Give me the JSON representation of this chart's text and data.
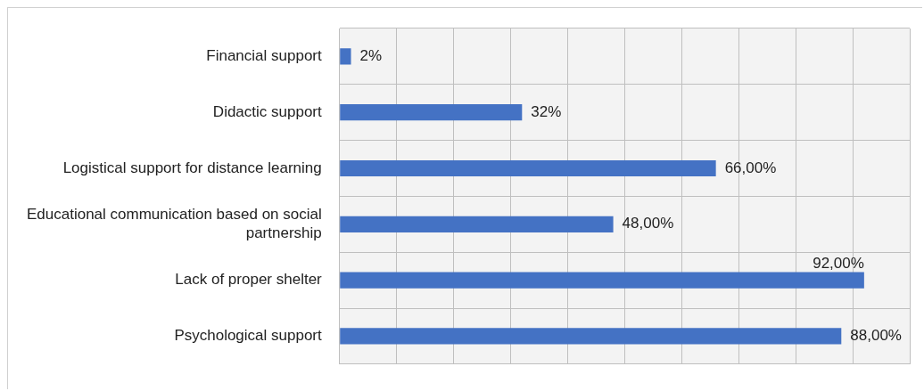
{
  "chart_data": {
    "type": "bar",
    "orientation": "horizontal",
    "categories": [
      "Financial support",
      "Didactic support",
      "Logistical support for distance learning",
      "Educational communication based on social partnership",
      "Lack of proper shelter",
      "Psychological support"
    ],
    "values": [
      2,
      32,
      66,
      48,
      92,
      88
    ],
    "value_labels": [
      "2%",
      "32%",
      "66,00%",
      "48,00%",
      "92,00%",
      "88,00%"
    ],
    "color": "#4472c4",
    "xlim": [
      0,
      100
    ],
    "xticks": [
      {
        "value": 0,
        "label": null
      },
      {
        "value": 10,
        "label": null
      },
      {
        "value": 20,
        "label": null
      },
      {
        "value": 30,
        "label": null
      },
      {
        "value": 40,
        "label": null
      },
      {
        "value": 50,
        "label": null
      },
      {
        "value": 60,
        "label": null
      },
      {
        "value": 70,
        "label": null
      },
      {
        "value": 80,
        "label": null
      },
      {
        "value": 90,
        "label": null
      },
      {
        "value": 100,
        "label": null
      }
    ],
    "tick_labels": "y",
    "grid": true,
    "legend": false
  }
}
